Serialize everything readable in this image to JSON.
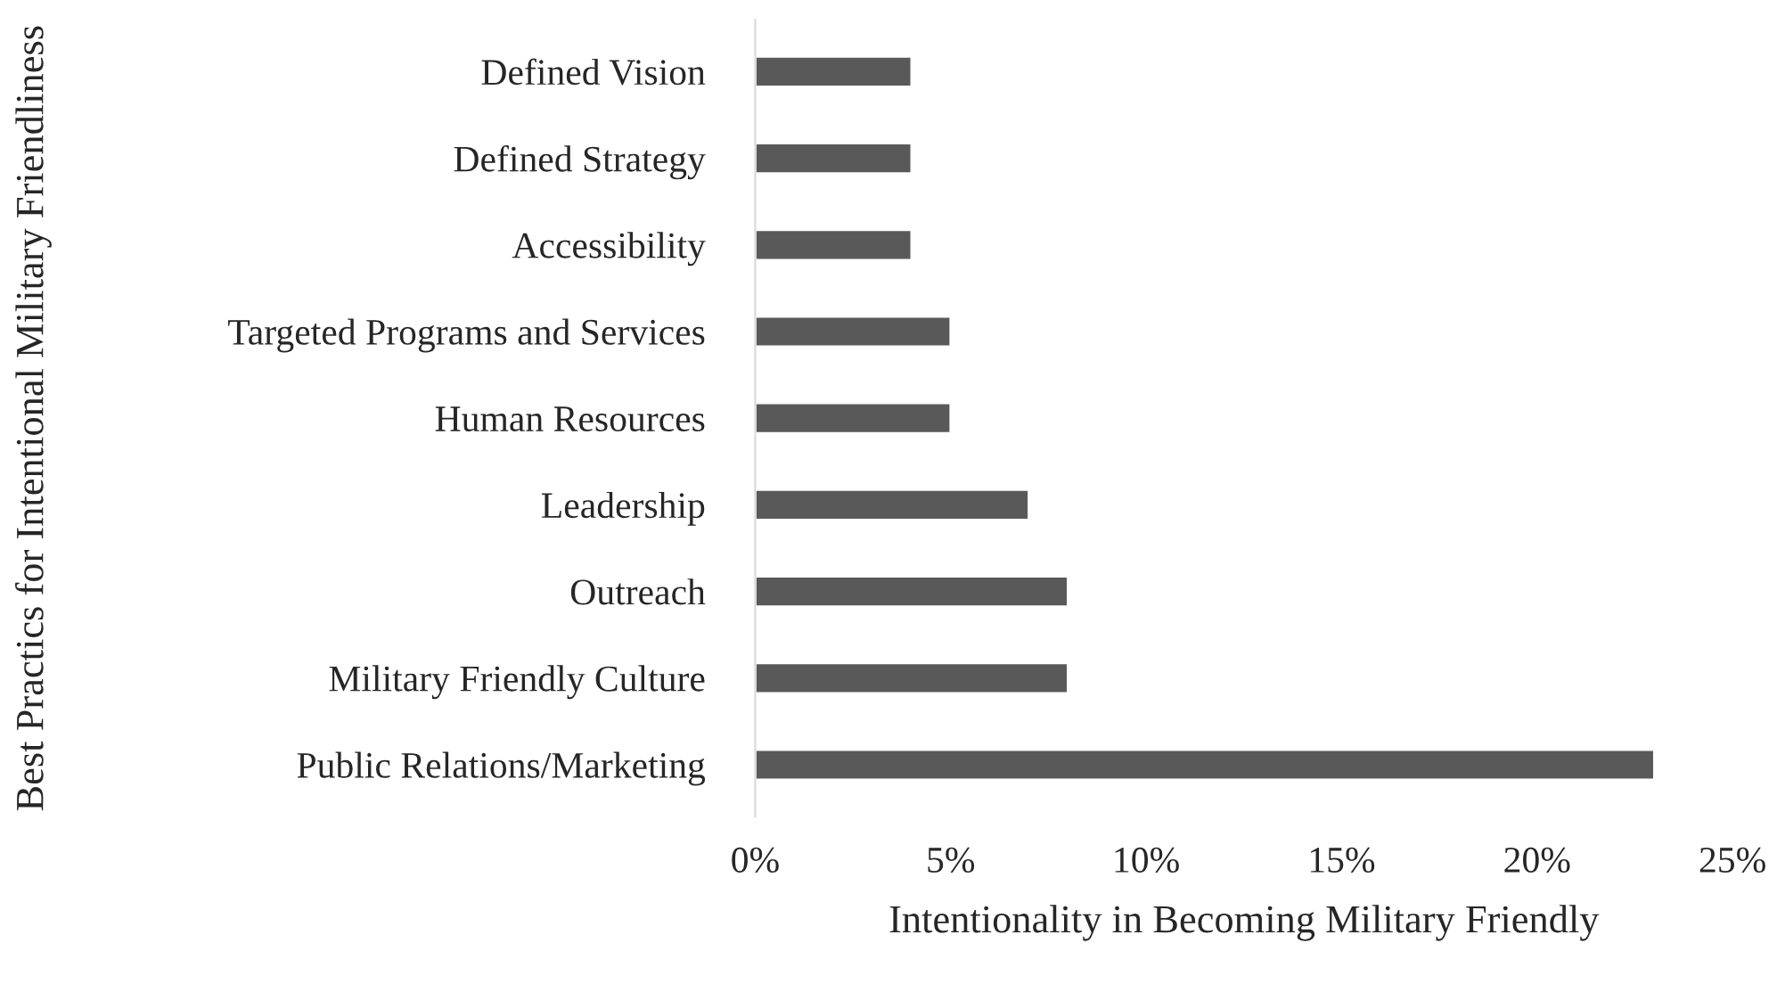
{
  "chart_data": {
    "type": "bar",
    "orientation": "horizontal",
    "xlabel": "Intentionality in Becoming Military Friendly",
    "ylabel": "Best Practics for Intentional Military Friendliness",
    "categories": [
      "Defined Vision",
      "Defined Strategy",
      "Accessibility",
      "Targeted Programs and Services",
      "Human Resources",
      "Leadership",
      "Outreach",
      "Military Friendly Culture",
      "Public Relations/Marketing"
    ],
    "values": [
      4,
      4,
      4,
      5,
      5,
      7,
      8,
      8,
      23
    ],
    "color": "#595959",
    "xlim": [
      0,
      25
    ],
    "xticks": [
      {
        "value": 0,
        "label": "0%"
      },
      {
        "value": 5,
        "label": "5%"
      },
      {
        "value": 10,
        "label": "10%"
      },
      {
        "value": 15,
        "label": "15%"
      },
      {
        "value": 20,
        "label": "20%"
      },
      {
        "value": 25,
        "label": "25%"
      }
    ],
    "grid": false,
    "legend": false
  }
}
